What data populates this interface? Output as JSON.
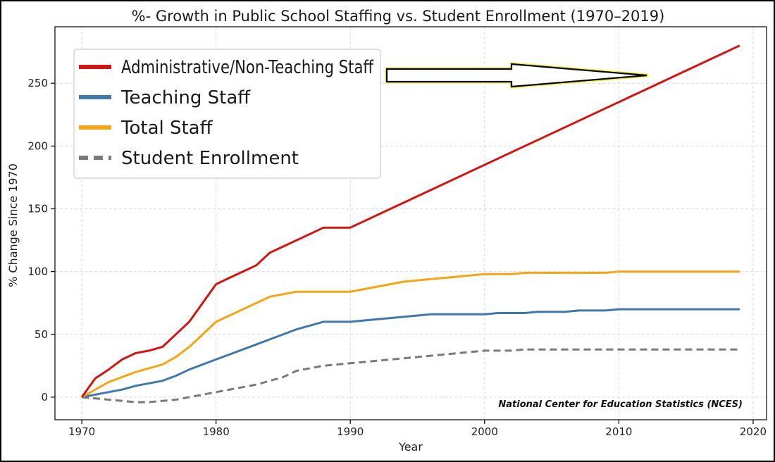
{
  "chart_data": {
    "type": "line",
    "title": "%- Growth in Public School Staffing vs. Student Enrollment (1970–2019)",
    "xlabel": "Year",
    "ylabel": "% Change Since 1970",
    "xlim": [
      1968,
      2021
    ],
    "ylim": [
      -18,
      295
    ],
    "xticks": [
      1970,
      1980,
      1990,
      2000,
      2010,
      2020
    ],
    "yticks": [
      0,
      50,
      100,
      150,
      200,
      250
    ],
    "grid": true,
    "legend_position": "top-left",
    "source_note": "National Center for Education Statistics (NCES)",
    "series": [
      {
        "name": "Administrative/Non-Teaching Staff",
        "color": "#d11414",
        "style": "solid",
        "points": [
          [
            1970,
            0
          ],
          [
            1971,
            15
          ],
          [
            1972,
            22
          ],
          [
            1973,
            30
          ],
          [
            1974,
            35
          ],
          [
            1975,
            37
          ],
          [
            1976,
            40
          ],
          [
            1977,
            50
          ],
          [
            1978,
            60
          ],
          [
            1979,
            75
          ],
          [
            1980,
            90
          ],
          [
            1981,
            95
          ],
          [
            1982,
            100
          ],
          [
            1983,
            105
          ],
          [
            1984,
            115
          ],
          [
            1985,
            120
          ],
          [
            1986,
            125
          ],
          [
            1987,
            130
          ],
          [
            1988,
            135
          ],
          [
            1989,
            135
          ],
          [
            1990,
            135
          ],
          [
            2019,
            280
          ]
        ]
      },
      {
        "name": "Teaching Staff",
        "color": "#4078a8",
        "style": "solid",
        "points": [
          [
            1970,
            0
          ],
          [
            1973,
            6
          ],
          [
            1974,
            9
          ],
          [
            1975,
            11
          ],
          [
            1976,
            13
          ],
          [
            1977,
            17
          ],
          [
            1978,
            22
          ],
          [
            1980,
            30
          ],
          [
            1982,
            38
          ],
          [
            1984,
            46
          ],
          [
            1986,
            54
          ],
          [
            1988,
            60
          ],
          [
            1990,
            60
          ],
          [
            1996,
            66
          ],
          [
            2000,
            66
          ],
          [
            2001,
            67
          ],
          [
            2003,
            67
          ],
          [
            2004,
            68
          ],
          [
            2006,
            68
          ],
          [
            2007,
            69
          ],
          [
            2009,
            69
          ],
          [
            2010,
            70
          ],
          [
            2019,
            70
          ]
        ]
      },
      {
        "name": "Total Staff",
        "color": "#f2a516",
        "style": "solid",
        "points": [
          [
            1970,
            0
          ],
          [
            1972,
            12
          ],
          [
            1974,
            20
          ],
          [
            1976,
            26
          ],
          [
            1977,
            32
          ],
          [
            1978,
            40
          ],
          [
            1980,
            60
          ],
          [
            1982,
            70
          ],
          [
            1984,
            80
          ],
          [
            1986,
            84
          ],
          [
            1988,
            84
          ],
          [
            1990,
            84
          ],
          [
            1994,
            92
          ],
          [
            2000,
            98
          ],
          [
            2002,
            98
          ],
          [
            2003,
            99
          ],
          [
            2009,
            99
          ],
          [
            2010,
            100
          ],
          [
            2019,
            100
          ]
        ]
      },
      {
        "name": "Student Enrollment",
        "color": "#7a7a7a",
        "style": "dashed",
        "points": [
          [
            1970,
            0
          ],
          [
            1972,
            -2
          ],
          [
            1974,
            -4
          ],
          [
            1975,
            -4
          ],
          [
            1977,
            -2
          ],
          [
            1978,
            0
          ],
          [
            1980,
            4
          ],
          [
            1983,
            10
          ],
          [
            1985,
            16
          ],
          [
            1986,
            21
          ],
          [
            1988,
            25
          ],
          [
            1990,
            27
          ],
          [
            1995,
            32
          ],
          [
            2000,
            37
          ],
          [
            2002,
            37
          ],
          [
            2003,
            38
          ],
          [
            2019,
            38
          ]
        ]
      }
    ]
  }
}
